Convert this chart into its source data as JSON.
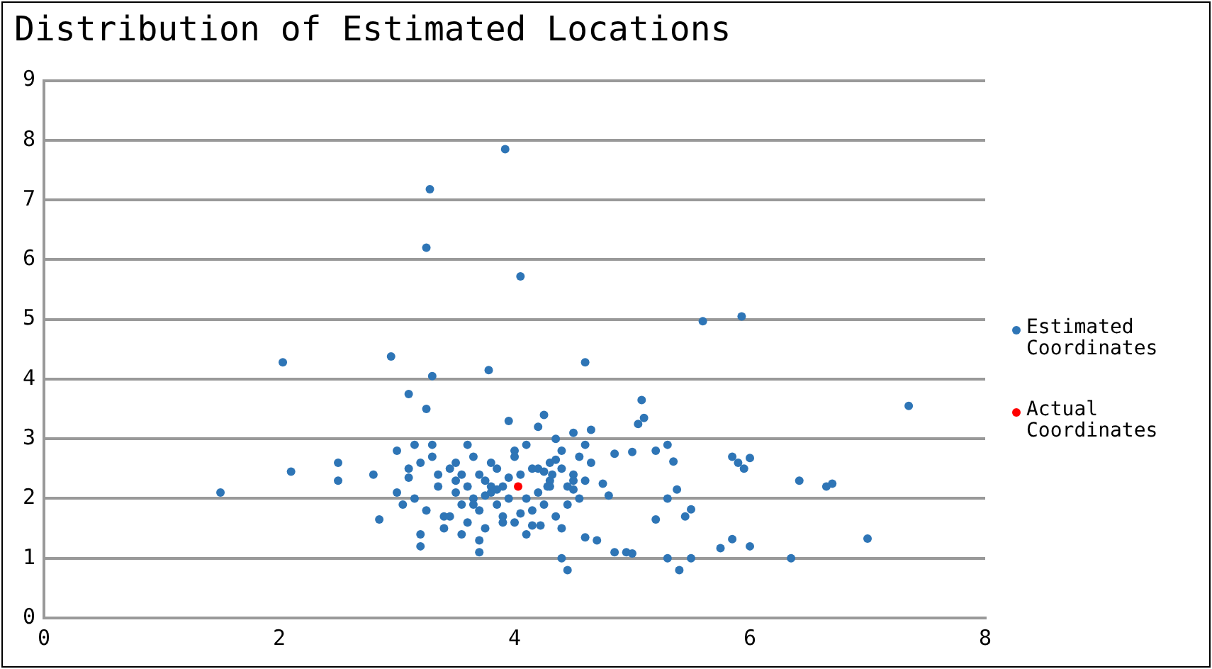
{
  "chart_data": {
    "type": "scatter",
    "title": "Distribution of Estimated Locations",
    "xlim": [
      0,
      8
    ],
    "xticks": [
      0,
      2,
      4,
      6,
      8
    ],
    "ylim": [
      0,
      9
    ],
    "yticks": [
      0,
      1,
      2,
      3,
      4,
      5,
      6,
      7,
      8,
      9
    ],
    "grid": "y",
    "legend": "right",
    "marker": "circle",
    "series": [
      {
        "name": "Estimated Coordinates",
        "color": "#2e75b6",
        "x": [
          1.5,
          2.03,
          2.1,
          2.5,
          2.5,
          2.8,
          2.85,
          2.95,
          3.28,
          3.25,
          3.3,
          3.92,
          4.05,
          3.78,
          4.6,
          3.1,
          5.6,
          5.93,
          7.35,
          7.0,
          6.35,
          6.42,
          6.7,
          6.65,
          5.95,
          6.0,
          5.85,
          5.9,
          5.85,
          6.0,
          5.75,
          5.5,
          5.4,
          5.3,
          5.5,
          5.45,
          5.2,
          5.3,
          5.38,
          5.08,
          5.1,
          5.05,
          5.2,
          5.3,
          5.35,
          5.0,
          4.95,
          5.0,
          4.85,
          4.7,
          4.6,
          4.45,
          4.4,
          3.7,
          3.2,
          4.75,
          4.8,
          4.65,
          4.85,
          3.0,
          3.05,
          3.1,
          3.15,
          3.2,
          3.25,
          3.3,
          3.35,
          3.4,
          3.45,
          3.5,
          3.5,
          3.55,
          3.55,
          3.6,
          3.6,
          3.65,
          3.65,
          3.7,
          3.7,
          3.75,
          3.75,
          3.8,
          3.8,
          3.85,
          3.85,
          3.9,
          3.9,
          3.95,
          3.95,
          4.0,
          4.0,
          4.05,
          4.1,
          4.1,
          4.15,
          4.15,
          4.2,
          4.2,
          4.25,
          4.25,
          4.3,
          4.3,
          4.35,
          4.35,
          4.4,
          4.4,
          4.45,
          4.45,
          4.5,
          4.5,
          4.55,
          4.55,
          4.6,
          4.6,
          4.65,
          3.0,
          3.1,
          3.2,
          3.3,
          3.4,
          3.5,
          3.6,
          3.7,
          3.8,
          3.9,
          4.0,
          4.1,
          4.2,
          4.3,
          4.4,
          4.5,
          3.35,
          3.45,
          3.55,
          3.65,
          3.75,
          3.85,
          3.95,
          4.05,
          4.15,
          4.25,
          4.35,
          4.5,
          3.15,
          3.25,
          4.28,
          4.22,
          4.32
        ],
        "values": [
          2.1,
          4.28,
          2.45,
          2.3,
          2.6,
          2.4,
          1.65,
          4.38,
          7.18,
          6.2,
          4.05,
          7.85,
          5.72,
          4.15,
          4.28,
          3.75,
          4.97,
          5.05,
          3.55,
          1.33,
          1.0,
          2.3,
          2.25,
          2.2,
          2.5,
          2.68,
          2.7,
          2.6,
          1.32,
          1.2,
          1.17,
          1.0,
          0.8,
          1.0,
          1.82,
          1.7,
          1.65,
          2.0,
          2.15,
          3.65,
          3.35,
          3.25,
          2.8,
          2.9,
          2.62,
          2.78,
          1.1,
          1.08,
          1.1,
          1.3,
          1.35,
          0.8,
          1.0,
          1.1,
          1.2,
          2.25,
          2.05,
          3.15,
          2.75,
          2.8,
          1.9,
          2.35,
          2.0,
          2.6,
          1.8,
          2.7,
          2.2,
          1.7,
          2.5,
          2.1,
          2.6,
          1.9,
          2.4,
          1.6,
          2.2,
          2.7,
          2.0,
          1.8,
          2.4,
          2.3,
          1.5,
          2.1,
          2.6,
          1.9,
          2.5,
          2.2,
          1.7,
          3.3,
          2.0,
          2.8,
          1.6,
          2.4,
          2.0,
          2.9,
          1.8,
          2.5,
          3.2,
          2.1,
          3.4,
          1.9,
          2.6,
          2.3,
          3.0,
          1.7,
          2.5,
          2.8,
          2.2,
          1.9,
          3.1,
          2.4,
          2.0,
          2.7,
          2.9,
          2.3,
          2.6,
          2.1,
          2.5,
          1.4,
          2.9,
          1.5,
          2.3,
          2.9,
          1.3,
          2.2,
          1.6,
          2.7,
          1.4,
          2.5,
          2.2,
          1.5,
          2.3,
          2.4,
          1.7,
          1.4,
          1.9,
          2.05,
          2.15,
          2.35,
          1.75,
          1.55,
          2.45,
          2.65,
          2.15,
          2.9,
          3.5,
          2.2,
          1.55,
          2.4
        ]
      },
      {
        "name": "Actual Coordinates",
        "color": "#ff0000",
        "x": [
          4.03
        ],
        "values": [
          2.2
        ]
      }
    ]
  }
}
